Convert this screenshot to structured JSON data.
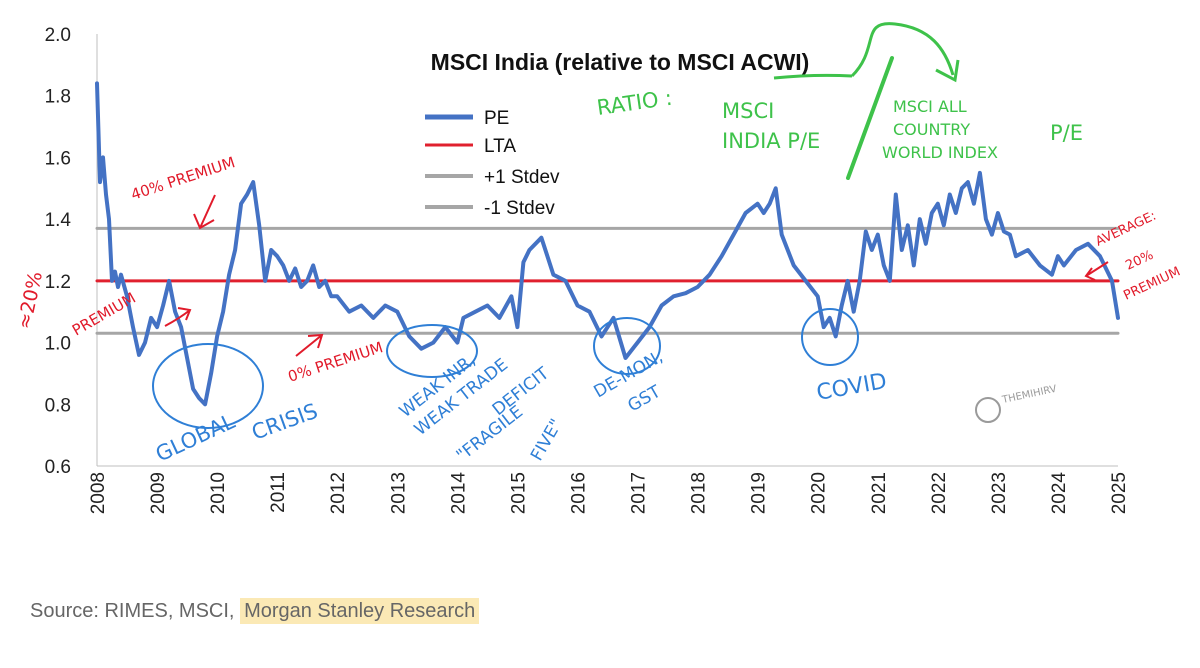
{
  "chart_data": {
    "type": "line",
    "title": "MSCI India (relative to MSCI ACWI)",
    "ylim": [
      0.6,
      2.0
    ],
    "yticks": [
      "2.0",
      "1.8",
      "1.6",
      "1.4",
      "1.2",
      "1.0",
      "0.8",
      "0.6"
    ],
    "xticks": [
      "2008",
      "2009",
      "2010",
      "2011",
      "2012",
      "2013",
      "2014",
      "2015",
      "2016",
      "2017",
      "2018",
      "2019",
      "2020",
      "2021",
      "2022",
      "2023",
      "2024",
      "2025"
    ],
    "xlim": [
      2008,
      2025
    ],
    "grid": false,
    "legend_position": "top-center",
    "legend": [
      "PE",
      "LTA",
      "+1 Stdev",
      "-1 Stdev"
    ],
    "series": [
      {
        "name": "PE",
        "color": "#4472c4",
        "x": [
          2008.0,
          2008.05,
          2008.1,
          2008.15,
          2008.2,
          2008.25,
          2008.3,
          2008.35,
          2008.4,
          2008.5,
          2008.6,
          2008.7,
          2008.8,
          2008.9,
          2009.0,
          2009.1,
          2009.2,
          2009.3,
          2009.4,
          2009.5,
          2009.6,
          2009.7,
          2009.8,
          2009.9,
          2010.0,
          2010.1,
          2010.2,
          2010.3,
          2010.4,
          2010.5,
          2010.6,
          2010.7,
          2010.8,
          2010.9,
          2011.0,
          2011.1,
          2011.2,
          2011.3,
          2011.4,
          2011.5,
          2011.6,
          2011.7,
          2011.8,
          2011.9,
          2012.0,
          2012.2,
          2012.4,
          2012.6,
          2012.8,
          2013.0,
          2013.2,
          2013.4,
          2013.6,
          2013.8,
          2014.0,
          2014.1,
          2014.3,
          2014.5,
          2014.7,
          2014.9,
          2015.0,
          2015.1,
          2015.2,
          2015.4,
          2015.6,
          2015.8,
          2016.0,
          2016.2,
          2016.4,
          2016.6,
          2016.8,
          2017.0,
          2017.2,
          2017.4,
          2017.6,
          2017.8,
          2018.0,
          2018.2,
          2018.4,
          2018.6,
          2018.8,
          2019.0,
          2019.1,
          2019.2,
          2019.3,
          2019.4,
          2019.5,
          2019.6,
          2019.8,
          2020.0,
          2020.1,
          2020.2,
          2020.3,
          2020.4,
          2020.5,
          2020.6,
          2020.7,
          2020.8,
          2020.9,
          2021.0,
          2021.1,
          2021.2,
          2021.3,
          2021.4,
          2021.5,
          2021.6,
          2021.7,
          2021.8,
          2021.9,
          2022.0,
          2022.1,
          2022.2,
          2022.3,
          2022.4,
          2022.5,
          2022.6,
          2022.7,
          2022.8,
          2022.9,
          2023.0,
          2023.1,
          2023.2,
          2023.3,
          2023.5,
          2023.7,
          2023.9,
          2024.0,
          2024.1,
          2024.3,
          2024.5,
          2024.7,
          2024.9,
          2025.0
        ],
        "values": [
          1.84,
          1.52,
          1.6,
          1.48,
          1.4,
          1.2,
          1.23,
          1.18,
          1.22,
          1.15,
          1.05,
          0.96,
          1.0,
          1.08,
          1.05,
          1.12,
          1.2,
          1.1,
          1.05,
          0.95,
          0.85,
          0.82,
          0.8,
          0.9,
          1.02,
          1.1,
          1.22,
          1.3,
          1.45,
          1.48,
          1.52,
          1.38,
          1.2,
          1.3,
          1.28,
          1.25,
          1.2,
          1.24,
          1.18,
          1.2,
          1.25,
          1.18,
          1.2,
          1.15,
          1.15,
          1.1,
          1.12,
          1.08,
          1.12,
          1.1,
          1.02,
          0.98,
          1.0,
          1.05,
          1.0,
          1.08,
          1.1,
          1.12,
          1.08,
          1.15,
          1.05,
          1.26,
          1.3,
          1.34,
          1.22,
          1.2,
          1.12,
          1.1,
          1.02,
          1.08,
          0.95,
          1.0,
          1.05,
          1.12,
          1.15,
          1.16,
          1.18,
          1.22,
          1.28,
          1.35,
          1.42,
          1.45,
          1.42,
          1.45,
          1.5,
          1.35,
          1.3,
          1.25,
          1.2,
          1.15,
          1.05,
          1.08,
          1.02,
          1.12,
          1.2,
          1.1,
          1.2,
          1.36,
          1.3,
          1.35,
          1.25,
          1.2,
          1.48,
          1.3,
          1.38,
          1.25,
          1.4,
          1.32,
          1.42,
          1.45,
          1.38,
          1.48,
          1.42,
          1.5,
          1.52,
          1.45,
          1.55,
          1.4,
          1.35,
          1.42,
          1.36,
          1.35,
          1.28,
          1.3,
          1.25,
          1.22,
          1.28,
          1.25,
          1.3,
          1.32,
          1.28,
          1.2,
          1.08
        ]
      },
      {
        "name": "LTA",
        "color": "#e0202e",
        "x": [
          2008.0,
          2025.0
        ],
        "values": [
          1.2,
          1.2
        ]
      },
      {
        "name": "+1 Stdev",
        "color": "#a6a6a6",
        "x": [
          2008.0,
          2025.0
        ],
        "values": [
          1.37,
          1.37
        ]
      },
      {
        "name": "-1 Stdev",
        "color": "#a6a6a6",
        "x": [
          2008.0,
          2025.0
        ],
        "values": [
          1.03,
          1.03
        ]
      }
    ]
  },
  "annotations": {
    "ratio": "RATIO :",
    "ratio_numerator": [
      "MSCI",
      "INDIA P/E"
    ],
    "ratio_denominator": [
      "MSCI ALL",
      "COUNTRY",
      "WORLD INDEX"
    ],
    "ratio_pe": "P/E",
    "premium_40": "40% PREMIUM",
    "premium_20_pct": "≈20%",
    "premium_20_word": "PREMIUM",
    "premium_0": "0% PREMIUM",
    "average": [
      "AVERAGE:",
      "20%",
      "PREMIUM"
    ],
    "global_crisis": [
      "GLOBAL",
      "CRISIS"
    ],
    "weak_inr": [
      "WEAK INR,",
      "WEAK TRADE",
      "DEFICIT",
      "\"FRAGILE",
      "FIVE\""
    ],
    "demon": [
      "DE-MON,",
      "GST"
    ],
    "covid": "COVID",
    "watermark": "THEMIHIRV"
  },
  "source": {
    "prefix": "Source: RIMES, MSCI, ",
    "highlighted": "Morgan Stanley Research"
  }
}
